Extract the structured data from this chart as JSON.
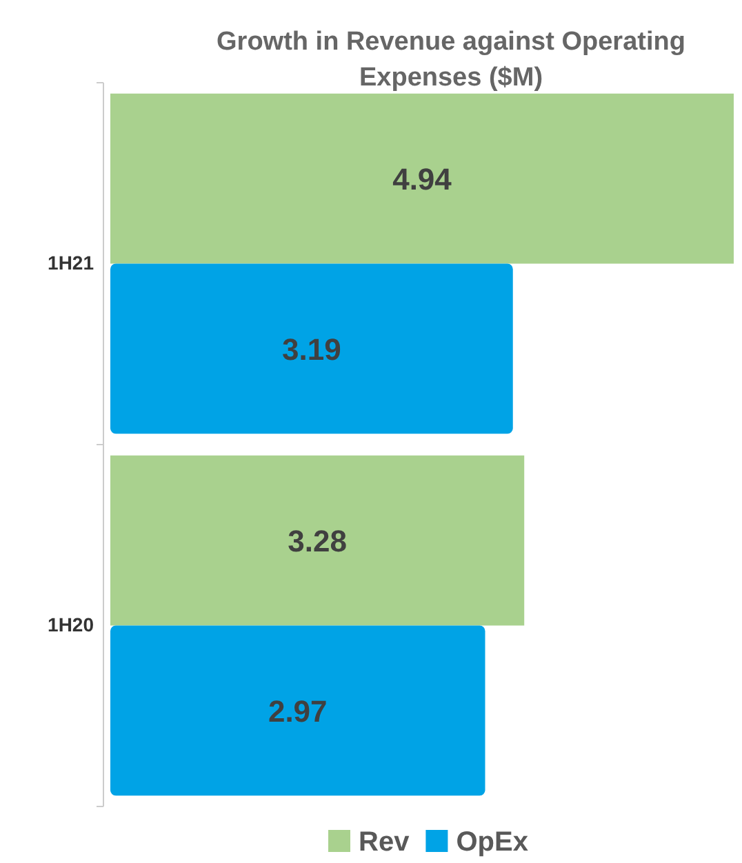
{
  "chart_data": {
    "type": "bar",
    "orientation": "horizontal",
    "title": "Growth in Revenue against Operating Expenses ($M)",
    "categories": [
      "1H21",
      "1H20"
    ],
    "series": [
      {
        "name": "Rev",
        "color": "#a9d18e",
        "values": [
          4.94,
          3.28
        ]
      },
      {
        "name": "OpEx",
        "color": "#00a3e6",
        "values": [
          3.19,
          2.97
        ]
      }
    ],
    "data_labels": true,
    "legend": "bottom"
  }
}
